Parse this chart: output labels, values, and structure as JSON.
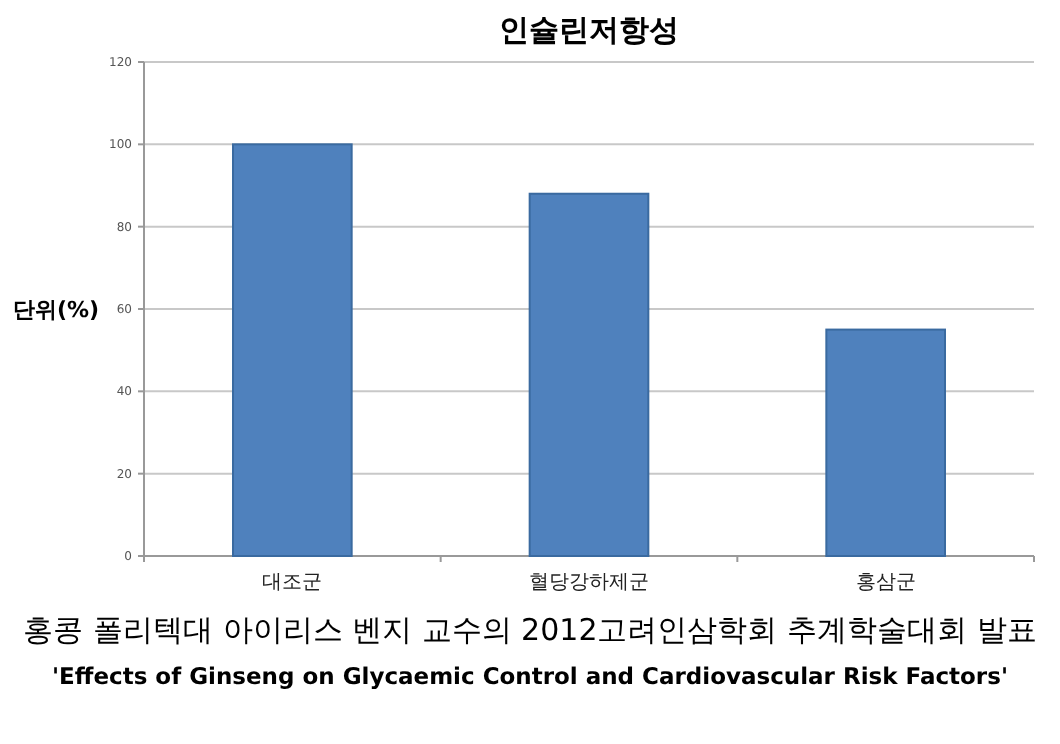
{
  "chart_data": {
    "type": "bar",
    "title": "인슐린저항성",
    "ylabel": "단위(%)",
    "categories": [
      "대조군",
      "혈당강하제군",
      "홍삼군"
    ],
    "values": [
      100,
      88,
      55
    ],
    "color": "#4f81bd",
    "ylim": [
      0,
      120
    ],
    "yticks": [
      0,
      20,
      40,
      60,
      80,
      100,
      120
    ],
    "grid": "y",
    "annotations": [
      "홍콩 폴리텍대 아이리스 벤지 교수의 2012고려인삼학회 추계학술대회 발표",
      "'Effects of Ginseng on Glycaemic Control and Cardiovascular Risk Factors'"
    ]
  }
}
